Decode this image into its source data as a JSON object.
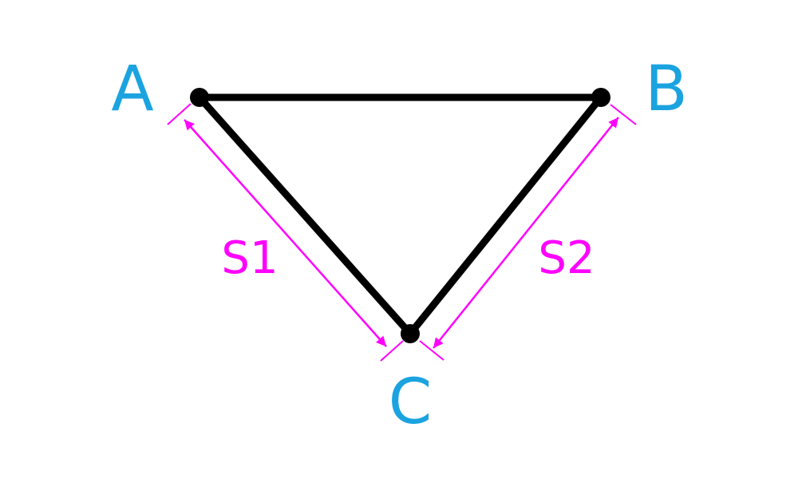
{
  "diagram": {
    "vertices": [
      {
        "id": "A",
        "label": "A"
      },
      {
        "id": "B",
        "label": "B"
      },
      {
        "id": "C",
        "label": "C"
      }
    ],
    "edges": [
      {
        "from": "A",
        "to": "B"
      },
      {
        "from": "A",
        "to": "C"
      },
      {
        "from": "B",
        "to": "C"
      }
    ],
    "dimensions": [
      {
        "label": "S1",
        "from": "A",
        "to": "C"
      },
      {
        "label": "S2",
        "from": "B",
        "to": "C"
      }
    ]
  },
  "colors": {
    "edge": "#000000",
    "vertex_dot": "#000000",
    "vertex_label": "#1ba3e0",
    "dimension": "#ff00ff",
    "background": "#ffffff"
  }
}
